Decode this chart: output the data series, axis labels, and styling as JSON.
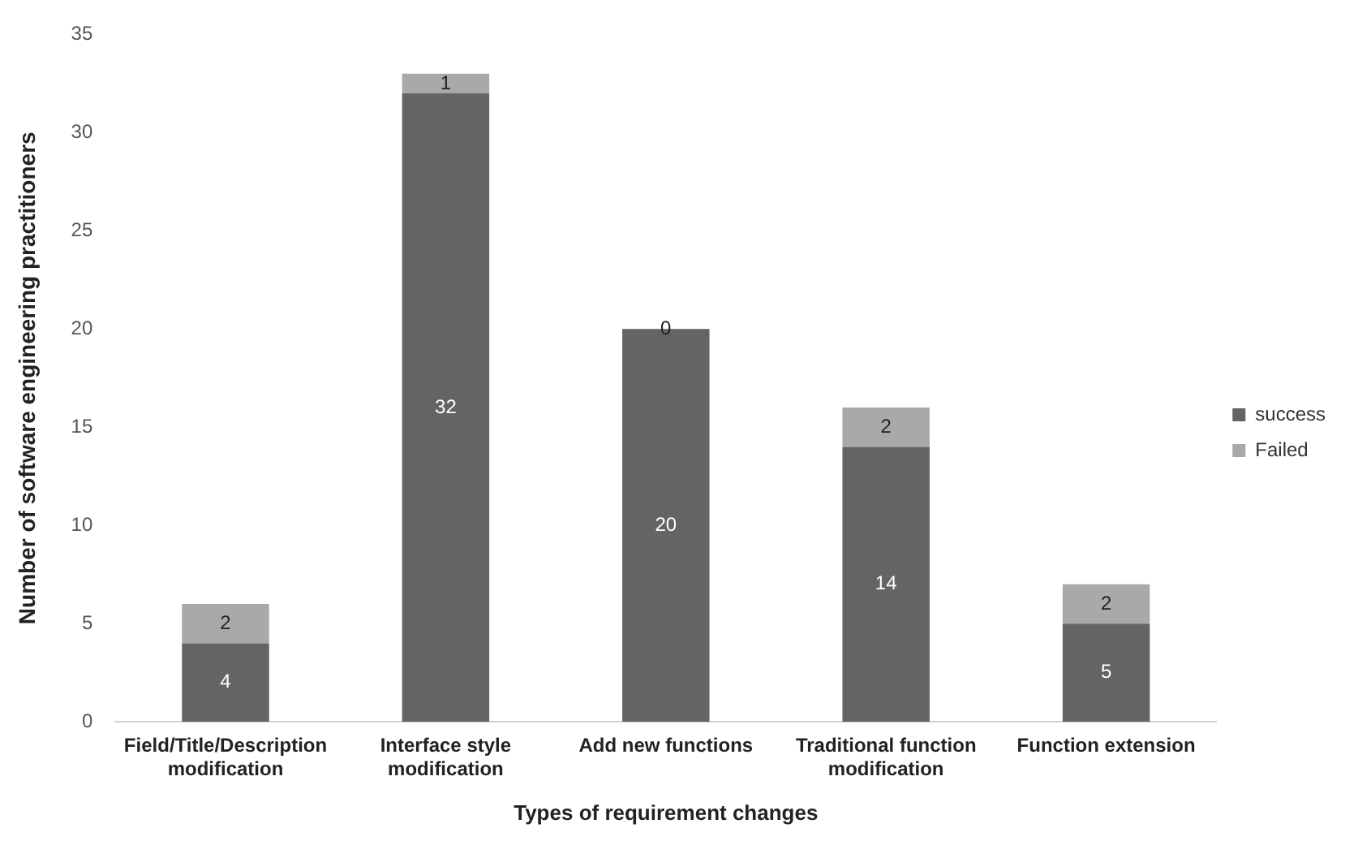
{
  "chart_data": {
    "type": "bar",
    "stacked": true,
    "xlabel": "Types of requirement changes",
    "ylabel": "Number of software engineering practitioners",
    "categories": [
      "Field/Title/Description modification",
      "Interface style modification",
      "Add new functions",
      "Traditional function modification",
      "Function extension"
    ],
    "series": [
      {
        "name": "success",
        "color": "#646464",
        "values": [
          4,
          32,
          20,
          14,
          5
        ]
      },
      {
        "name": "Failed",
        "color": "#a9a9a9",
        "values": [
          2,
          1,
          0,
          2,
          2
        ]
      }
    ],
    "ylim": [
      0,
      35
    ],
    "yticks": [
      0,
      5,
      10,
      15,
      20,
      25,
      30,
      35
    ],
    "grid": false,
    "legend": "right",
    "data_labels": true
  }
}
